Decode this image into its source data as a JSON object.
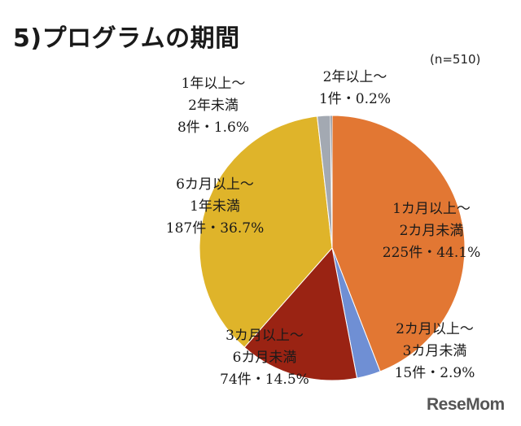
{
  "title": "5)プログラムの期間",
  "sample_size": "(n=510)",
  "watermark": "ReseMom",
  "colors": {
    "one_to_two_months": "#e27733",
    "two_to_three_months": "#6f8fd4",
    "three_to_six_months": "#9a2313",
    "six_months_to_one_year": "#dfb42a",
    "one_to_two_years": "#a3a9b2",
    "over_two_years": "#4a5262"
  },
  "chart_data": {
    "type": "pie",
    "title": "5)プログラムの期間",
    "note": "(n=510)",
    "start": "12 o'clock",
    "direction": "clockwise",
    "slices": [
      {
        "key": "one_to_two_months",
        "lines": [
          "1カ月以上～",
          "2カ月未満",
          "225件・44.1%"
        ],
        "count": 225,
        "percent": 44.1
      },
      {
        "key": "two_to_three_months",
        "lines": [
          "2カ月以上～",
          "3カ月未満",
          "15件・2.9%"
        ],
        "count": 15,
        "percent": 2.9
      },
      {
        "key": "three_to_six_months",
        "lines": [
          "3カ月以上～",
          "6カ月未満",
          "74件・14.5%"
        ],
        "count": 74,
        "percent": 14.5
      },
      {
        "key": "six_months_to_one_year",
        "lines": [
          "6カ月以上～",
          "1年未満",
          "187件・36.7%"
        ],
        "count": 187,
        "percent": 36.7
      },
      {
        "key": "one_to_two_years",
        "lines": [
          "1年以上～",
          "2年未満",
          "8件・1.6%"
        ],
        "count": 8,
        "percent": 1.6
      },
      {
        "key": "over_two_years",
        "lines": [
          "2年以上～",
          "1件・0.2%"
        ],
        "count": 1,
        "percent": 0.2
      }
    ]
  }
}
